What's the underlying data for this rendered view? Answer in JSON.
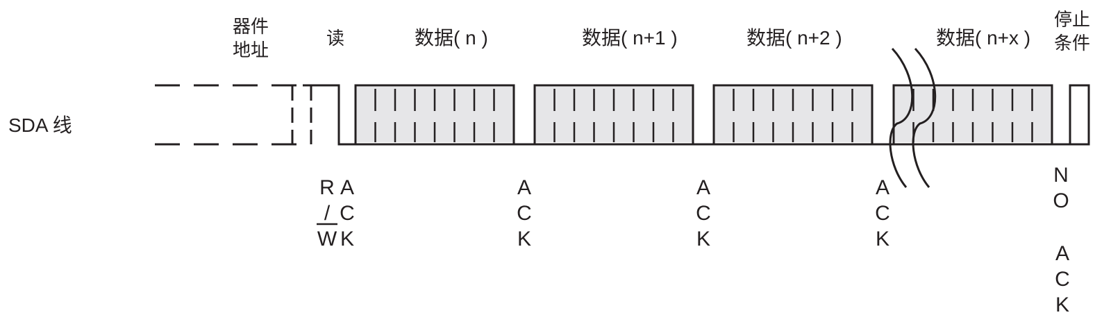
{
  "diagram": {
    "title": "SDA 线",
    "headers": {
      "device_address": [
        "器件",
        "地址"
      ],
      "read": "读",
      "data_n": "数据( n )",
      "data_n1": "数据( n+1 )",
      "data_n2": "数据( n+2 )",
      "data_nx": "数据( n+x )",
      "stop": [
        "停止",
        "条件"
      ]
    },
    "rw_ack": {
      "col1": [
        "R",
        "/",
        "W"
      ],
      "col2": [
        "A",
        "C",
        "K"
      ]
    },
    "ack_labels": [
      [
        "A",
        "C",
        "K"
      ],
      [
        "A",
        "C",
        "K"
      ],
      [
        "A",
        "C",
        "K"
      ]
    ],
    "no_ack": [
      "N",
      "O",
      "A",
      "C",
      "K"
    ],
    "colors": {
      "line": "#231f20",
      "fill": "#e6e6e8",
      "background": "#ffffff"
    }
  }
}
